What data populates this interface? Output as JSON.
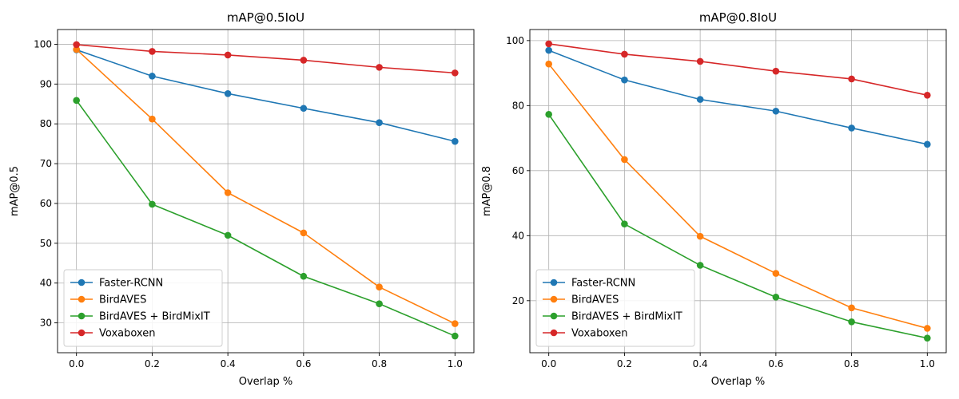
{
  "chart_data": [
    {
      "type": "line",
      "title": "mAP@0.5IoU",
      "xlabel": "Overlap %",
      "ylabel": "mAP@0.5",
      "x": [
        0.0,
        0.2,
        0.4,
        0.6,
        0.8,
        1.0
      ],
      "xlim": [
        -0.05,
        1.05
      ],
      "ylim": [
        22.5,
        103.7
      ],
      "xticks": [
        0.0,
        0.2,
        0.4,
        0.6,
        0.8,
        1.0
      ],
      "xtick_labels": [
        "0.0",
        "0.2",
        "0.4",
        "0.6",
        "0.8",
        "1.0"
      ],
      "yticks": [
        30,
        40,
        50,
        60,
        70,
        80,
        90,
        100
      ],
      "ytick_labels": [
        "30",
        "40",
        "50",
        "60",
        "70",
        "80",
        "90",
        "100"
      ],
      "grid": true,
      "legend_position": "lower-left",
      "series": [
        {
          "name": "Faster-RCNN",
          "color": "#1f77b4",
          "values": [
            98.6,
            92.0,
            87.6,
            83.9,
            80.3,
            75.6
          ]
        },
        {
          "name": "BirdAVES",
          "color": "#ff7f0e",
          "values": [
            98.7,
            81.2,
            62.7,
            52.6,
            39.0,
            29.8
          ]
        },
        {
          "name": "BirdAVES + BirdMixIT",
          "color": "#2ca02c",
          "values": [
            85.9,
            59.8,
            52.0,
            41.7,
            34.8,
            26.7
          ]
        },
        {
          "name": "Voxaboxen",
          "color": "#d62728",
          "values": [
            99.9,
            98.2,
            97.3,
            96.0,
            94.2,
            92.8
          ]
        }
      ]
    },
    {
      "type": "line",
      "title": "mAP@0.8IoU",
      "xlabel": "Overlap %",
      "ylabel": "mAP@0.8",
      "x": [
        0.0,
        0.2,
        0.4,
        0.6,
        0.8,
        1.0
      ],
      "xlim": [
        -0.05,
        1.05
      ],
      "ylim": [
        4.0,
        103.4
      ],
      "xticks": [
        0.0,
        0.2,
        0.4,
        0.6,
        0.8,
        1.0
      ],
      "xtick_labels": [
        "0.0",
        "0.2",
        "0.4",
        "0.6",
        "0.8",
        "1.0"
      ],
      "yticks": [
        20,
        40,
        60,
        80,
        100
      ],
      "ytick_labels": [
        "20",
        "40",
        "60",
        "80",
        "100"
      ],
      "grid": true,
      "legend_position": "lower-left",
      "series": [
        {
          "name": "Faster-RCNN",
          "color": "#1f77b4",
          "values": [
            97.0,
            87.9,
            81.9,
            78.3,
            73.1,
            68.1
          ]
        },
        {
          "name": "BirdAVES",
          "color": "#ff7f0e",
          "values": [
            92.8,
            63.4,
            39.8,
            28.4,
            17.8,
            11.5
          ]
        },
        {
          "name": "BirdAVES + BirdMixIT",
          "color": "#2ca02c",
          "values": [
            77.3,
            43.6,
            30.9,
            21.1,
            13.5,
            8.5
          ]
        },
        {
          "name": "Voxaboxen",
          "color": "#d62728",
          "values": [
            99.0,
            95.8,
            93.6,
            90.6,
            88.2,
            83.2
          ]
        }
      ]
    }
  ]
}
